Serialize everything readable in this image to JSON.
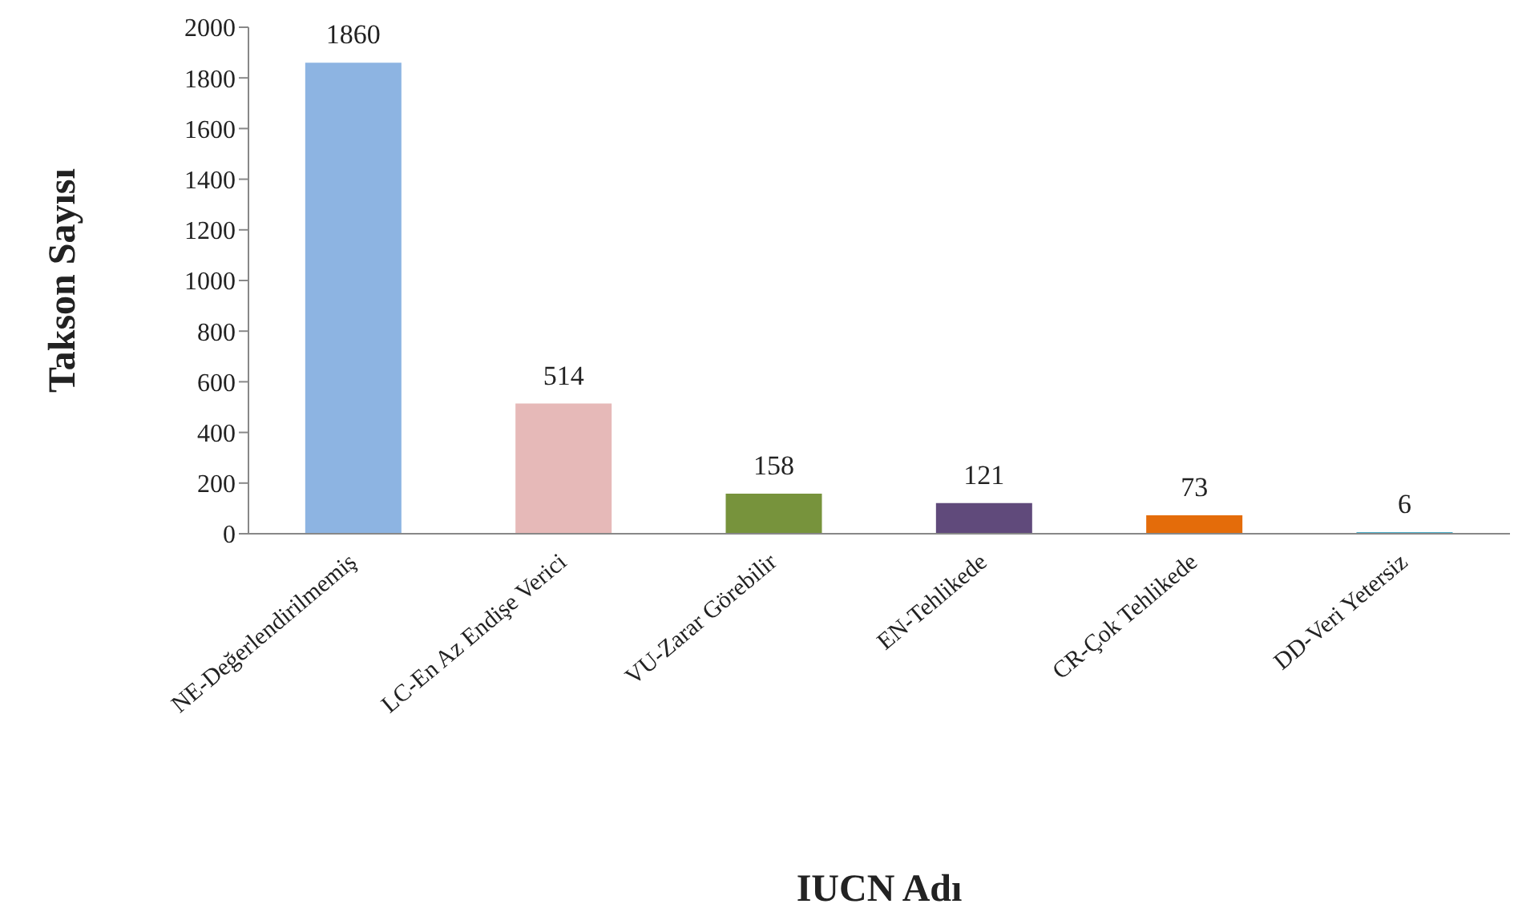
{
  "chart_data": {
    "type": "bar",
    "xlabel": "IUCN Adı",
    "ylabel": "Takson Sayısı",
    "categories": [
      "NE-Değerlendirilmemiş",
      "LC-En Az Endişe Verici",
      "VU-Zarar Görebilir",
      "EN-Tehlikede",
      "CR-Çok Tehlikede",
      "DD-Veri Yetersiz"
    ],
    "values": [
      1860,
      514,
      158,
      121,
      73,
      6
    ],
    "colors": [
      "#8db4e2",
      "#e6b9b8",
      "#77933c",
      "#604a7b",
      "#e46c0a",
      "#4bacc6"
    ],
    "ylim": [
      0,
      2000
    ],
    "yticks": [
      0,
      200,
      400,
      600,
      800,
      1000,
      1200,
      1400,
      1600,
      1800,
      2000
    ],
    "grid": false,
    "legend": false,
    "data_labels": true
  }
}
